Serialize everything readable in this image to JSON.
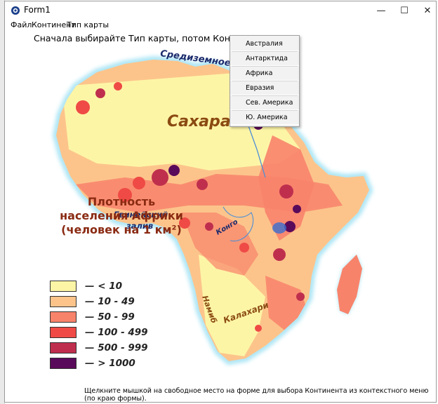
{
  "window": {
    "title": "Form1",
    "minimize_glyph": "—",
    "maximize_glyph": "☐",
    "close_glyph": "✕"
  },
  "menu": {
    "items": [
      {
        "label": "Файл"
      },
      {
        "label": "Континент"
      },
      {
        "label": "Тип карты"
      }
    ]
  },
  "instruction": "Сначала выбирайте Тип карты, потом Континент",
  "context_menu": {
    "items": [
      {
        "label": "Австралия"
      },
      {
        "label": "Антарктида"
      },
      {
        "label": "Африка"
      },
      {
        "label": "Евразия"
      },
      {
        "label": "Сев. Америка"
      },
      {
        "label": "Ю. Америка"
      }
    ]
  },
  "map": {
    "labels": {
      "mediterranean": "Средиземное мо",
      "sahara": "Сахара",
      "gulf_line1": "Гвинейский",
      "gulf_line2": "залив",
      "congo": "Конго",
      "namib": "Намиб",
      "kalahari": "Калахари"
    },
    "legend": {
      "title_line1": "Плотность",
      "title_line2": "населения Африки",
      "title_line3": "(человек на 1 км²)",
      "items": [
        {
          "label": "— < 10",
          "color": "#fdf5a6"
        },
        {
          "label": "— 10 - 49",
          "color": "#fcc48b"
        },
        {
          "label": "— 50 - 99",
          "color": "#f8836b"
        },
        {
          "label": "— 100 - 499",
          "color": "#ef4a45"
        },
        {
          "label": "— 500 - 999",
          "color": "#bf2f4d"
        },
        {
          "label": "— > 1000",
          "color": "#5a0a5a"
        }
      ]
    },
    "colors": {
      "desert": "#fdf5a6",
      "low": "#fcc48b",
      "mid": "#f8836b",
      "high": "#ef4a45",
      "very_high": "#bf2f4d",
      "max": "#5a0a5a",
      "coast_glow": "#aee6f5",
      "label_sahara": "#8a4a12",
      "label_sea": "#1a2a6c"
    }
  },
  "footer": "Щелкните мышкой на свободное место на форме для выбора Континента из контекстного меню (по краю формы)."
}
